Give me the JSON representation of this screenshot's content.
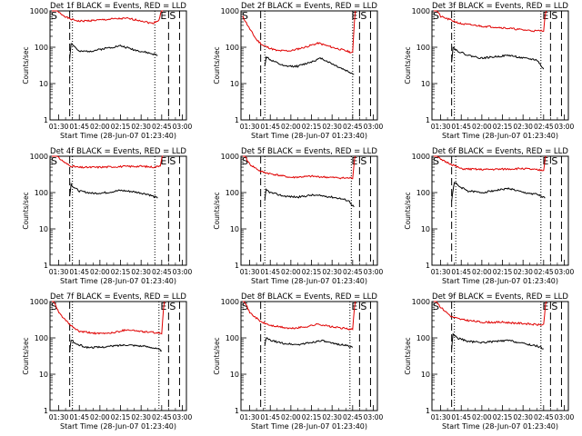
{
  "figure": {
    "series_colors": {
      "events": "#000000",
      "lld": "#e00000"
    },
    "marker_labels": {
      "end": "E",
      "start": "S"
    },
    "ylabel": "Counts/sec",
    "xlabel": "Start Time (28-Jun-07 01:23:40)",
    "x_ticks": [
      "01:30",
      "01:45",
      "02:00",
      "02:15",
      "02:30",
      "02:45",
      "03:00"
    ],
    "y_ticks": [
      "1",
      "10",
      "100",
      "1000"
    ]
  },
  "chart_data": [
    {
      "type": "line",
      "title": "Det 1f BLACK = Events, RED = LLD",
      "xlabel": "Start Time (28-Jun-07 01:23:40)",
      "ylabel": "Counts/sec",
      "x_ticks": [
        "01:30",
        "01:45",
        "02:00",
        "02:15",
        "02:30",
        "02:45",
        "03:00"
      ],
      "y_ticks": [
        "1",
        "10",
        "100",
        "1000"
      ],
      "y_scale": "log",
      "xlim": [
        "01:23:40",
        "03:03:00"
      ],
      "ylim": [
        1,
        1000
      ],
      "dashed_lines": [
        "01:38:00",
        "02:50:00",
        "02:58:00"
      ],
      "dotted_lines": [
        "01:40:00",
        "02:40:00"
      ],
      "series": [
        {
          "color": "red",
          "x": [
            "01:25",
            "01:30",
            "01:35",
            "01:38",
            "01:45",
            "02:00",
            "02:10",
            "02:20",
            "02:30",
            "02:38",
            "02:43",
            "02:46"
          ],
          "y": [
            1300,
            900,
            700,
            600,
            520,
            560,
            600,
            620,
            540,
            450,
            560,
            1500
          ]
        },
        {
          "color": "black",
          "x": [
            "01:38",
            "01:39",
            "01:41",
            "01:45",
            "01:55",
            "02:05",
            "02:15",
            "02:25",
            "02:35",
            "02:42"
          ],
          "y": [
            50,
            130,
            110,
            75,
            80,
            95,
            110,
            85,
            70,
            60
          ]
        }
      ]
    },
    {
      "type": "line",
      "title": "Det 2f BLACK = Events, RED = LLD",
      "xlabel": "Start Time (28-Jun-07 01:23:40)",
      "ylabel": "Counts/sec",
      "x_ticks": [
        "01:30",
        "01:45",
        "02:00",
        "02:15",
        "02:30",
        "02:45",
        "03:00"
      ],
      "y_ticks": [
        "1",
        "10",
        "100",
        "1000"
      ],
      "y_scale": "log",
      "xlim": [
        "01:23:40",
        "03:03:00"
      ],
      "ylim": [
        1,
        1000
      ],
      "dashed_lines": [
        "01:38:00",
        "02:50:00",
        "02:58:00"
      ],
      "dotted_lines": [
        "01:41:00",
        "02:45:00"
      ],
      "series": [
        {
          "color": "red",
          "x": [
            "01:25",
            "01:30",
            "01:35",
            "01:40",
            "01:50",
            "02:00",
            "02:10",
            "02:20",
            "02:30",
            "02:40",
            "02:45",
            "02:47"
          ],
          "y": [
            700,
            320,
            160,
            110,
            80,
            80,
            100,
            130,
            100,
            80,
            70,
            1500
          ]
        },
        {
          "color": "black",
          "x": [
            "01:41",
            "01:42",
            "01:45",
            "01:55",
            "02:05",
            "02:15",
            "02:22",
            "02:30",
            "02:38",
            "02:46"
          ],
          "y": [
            30,
            55,
            45,
            30,
            30,
            40,
            50,
            35,
            25,
            18
          ]
        }
      ]
    },
    {
      "type": "line",
      "title": "Det 3f BLACK = Events, RED = LLD",
      "xlabel": "Start Time (28-Jun-07 01:23:40)",
      "ylabel": "Counts/sec",
      "x_ticks": [
        "01:30",
        "01:45",
        "02:00",
        "02:15",
        "02:30",
        "02:45",
        "03:00"
      ],
      "y_ticks": [
        "1",
        "10",
        "100",
        "1000"
      ],
      "y_scale": "log",
      "xlim": [
        "01:23:40",
        "03:03:00"
      ],
      "ylim": [
        1,
        1000
      ],
      "dashed_lines": [
        "01:38:00",
        "02:50:00",
        "02:58:00"
      ],
      "dotted_lines": [
        "01:40:00",
        "02:43:00"
      ],
      "series": [
        {
          "color": "red",
          "x": [
            "01:25",
            "01:30",
            "01:38",
            "01:45",
            "02:00",
            "02:10",
            "02:20",
            "02:30",
            "02:40",
            "02:45",
            "02:47"
          ],
          "y": [
            1400,
            700,
            550,
            440,
            380,
            360,
            330,
            300,
            280,
            290,
            1500
          ]
        },
        {
          "color": "black",
          "x": [
            "01:38",
            "01:39",
            "01:42",
            "01:50",
            "02:00",
            "02:10",
            "02:20",
            "02:30",
            "02:40",
            "02:45"
          ],
          "y": [
            40,
            100,
            80,
            60,
            50,
            55,
            60,
            50,
            45,
            25
          ]
        }
      ]
    },
    {
      "type": "line",
      "title": "Det 4f BLACK = Events, RED = LLD",
      "xlabel": "Start Time (28-Jun-07 01:23:40)",
      "ylabel": "Counts/sec",
      "x_ticks": [
        "01:30",
        "01:45",
        "02:00",
        "02:15",
        "02:30",
        "02:45",
        "03:00"
      ],
      "y_ticks": [
        "1",
        "10",
        "100",
        "1000"
      ],
      "y_scale": "log",
      "xlim": [
        "01:23:40",
        "03:03:00"
      ],
      "ylim": [
        1,
        1000
      ],
      "dashed_lines": [
        "01:38:00",
        "02:50:00",
        "02:58:00"
      ],
      "dotted_lines": [
        "01:40:00",
        "02:40:00"
      ],
      "series": [
        {
          "color": "red",
          "x": [
            "01:25",
            "01:30",
            "01:35",
            "01:38",
            "01:45",
            "02:00",
            "02:15",
            "02:30",
            "02:40",
            "02:44",
            "02:46"
          ],
          "y": [
            1300,
            900,
            650,
            550,
            490,
            500,
            520,
            530,
            500,
            560,
            1500
          ]
        },
        {
          "color": "black",
          "x": [
            "01:38",
            "01:39",
            "01:41",
            "01:45",
            "01:55",
            "02:05",
            "02:15",
            "02:25",
            "02:35",
            "02:42"
          ],
          "y": [
            80,
            170,
            140,
            110,
            95,
            100,
            115,
            105,
            90,
            70
          ]
        }
      ]
    },
    {
      "type": "line",
      "title": "Det 5f BLACK = Events, RED = LLD",
      "xlabel": "Start Time (28-Jun-07 01:23:40)",
      "ylabel": "Counts/sec",
      "x_ticks": [
        "01:30",
        "01:45",
        "02:00",
        "02:15",
        "02:30",
        "02:45",
        "03:00"
      ],
      "y_ticks": [
        "1",
        "10",
        "100",
        "1000"
      ],
      "y_scale": "log",
      "xlim": [
        "01:23:40",
        "03:03:00"
      ],
      "ylim": [
        1,
        1000
      ],
      "dashed_lines": [
        "01:38:00",
        "02:50:00",
        "02:58:00"
      ],
      "dotted_lines": [
        "01:41:00",
        "02:44:00"
      ],
      "series": [
        {
          "color": "red",
          "x": [
            "01:25",
            "01:30",
            "01:38",
            "01:45",
            "02:00",
            "02:15",
            "02:30",
            "02:40",
            "02:45",
            "02:47"
          ],
          "y": [
            1300,
            600,
            380,
            330,
            260,
            280,
            260,
            250,
            250,
            1500
          ]
        },
        {
          "color": "black",
          "x": [
            "01:41",
            "01:42",
            "01:45",
            "01:55",
            "02:05",
            "02:15",
            "02:25",
            "02:35",
            "02:42",
            "02:46"
          ],
          "y": [
            60,
            120,
            100,
            80,
            75,
            85,
            80,
            70,
            60,
            40
          ]
        }
      ]
    },
    {
      "type": "line",
      "title": "Det 6f BLACK = Events, RED = LLD",
      "xlabel": "Start Time (28-Jun-07 01:23:40)",
      "ylabel": "Counts/sec",
      "x_ticks": [
        "01:30",
        "01:45",
        "02:00",
        "02:15",
        "02:30",
        "02:45",
        "03:00"
      ],
      "y_ticks": [
        "1",
        "10",
        "100",
        "1000"
      ],
      "y_scale": "log",
      "xlim": [
        "01:23:40",
        "03:03:00"
      ],
      "ylim": [
        1,
        1000
      ],
      "dashed_lines": [
        "01:38:00",
        "02:50:00",
        "02:58:00"
      ],
      "dotted_lines": [
        "01:41:00",
        "02:43:00"
      ],
      "series": [
        {
          "color": "red",
          "x": [
            "01:25",
            "01:30",
            "01:38",
            "01:45",
            "02:00",
            "02:15",
            "02:30",
            "02:40",
            "02:45",
            "02:47"
          ],
          "y": [
            1300,
            800,
            600,
            450,
            430,
            440,
            460,
            420,
            410,
            1500
          ]
        },
        {
          "color": "black",
          "x": [
            "01:38",
            "01:40",
            "01:43",
            "01:50",
            "02:00",
            "02:10",
            "02:20",
            "02:30",
            "02:40",
            "02:46"
          ],
          "y": [
            60,
            200,
            150,
            110,
            100,
            115,
            130,
            100,
            90,
            70
          ]
        }
      ]
    },
    {
      "type": "line",
      "title": "Det 7f BLACK = Events, RED = LLD",
      "xlabel": "Start Time (28-Jun-07 01:23:40)",
      "ylabel": "Counts/sec",
      "x_ticks": [
        "01:30",
        "01:45",
        "02:00",
        "02:15",
        "02:30",
        "02:45",
        "03:00"
      ],
      "y_ticks": [
        "1",
        "10",
        "100",
        "1000"
      ],
      "y_scale": "log",
      "xlim": [
        "01:23:40",
        "03:03:00"
      ],
      "ylim": [
        1,
        1000
      ],
      "dashed_lines": [
        "01:38:00",
        "02:50:00",
        "02:58:00"
      ],
      "dotted_lines": [
        "01:40:00",
        "02:43:00"
      ],
      "series": [
        {
          "color": "red",
          "x": [
            "01:25",
            "01:30",
            "01:38",
            "01:45",
            "02:00",
            "02:10",
            "02:20",
            "02:30",
            "02:40",
            "02:45",
            "02:47"
          ],
          "y": [
            1300,
            500,
            230,
            150,
            130,
            140,
            170,
            150,
            140,
            130,
            1500
          ]
        },
        {
          "color": "black",
          "x": [
            "01:38",
            "01:39",
            "01:42",
            "01:50",
            "02:00",
            "02:10",
            "02:20",
            "02:30",
            "02:38",
            "02:45"
          ],
          "y": [
            40,
            90,
            70,
            55,
            55,
            60,
            65,
            60,
            55,
            45
          ]
        }
      ]
    },
    {
      "type": "line",
      "title": "Det 8f BLACK = Events, RED = LLD",
      "xlabel": "Start Time (28-Jun-07 01:23:40)",
      "ylabel": "Counts/sec",
      "x_ticks": [
        "01:30",
        "01:45",
        "02:00",
        "02:15",
        "02:30",
        "02:45",
        "03:00"
      ],
      "y_ticks": [
        "1",
        "10",
        "100",
        "1000"
      ],
      "y_scale": "log",
      "xlim": [
        "01:23:40",
        "03:03:00"
      ],
      "ylim": [
        1,
        1000
      ],
      "dashed_lines": [
        "01:38:00",
        "02:50:00",
        "02:58:00"
      ],
      "dotted_lines": [
        "01:41:00",
        "02:43:00"
      ],
      "series": [
        {
          "color": "red",
          "x": [
            "01:25",
            "01:30",
            "01:38",
            "01:45",
            "02:00",
            "02:10",
            "02:20",
            "02:30",
            "02:40",
            "02:45",
            "02:47"
          ],
          "y": [
            1300,
            500,
            280,
            220,
            180,
            200,
            240,
            200,
            180,
            170,
            1500
          ]
        },
        {
          "color": "black",
          "x": [
            "01:41",
            "01:42",
            "01:45",
            "01:55",
            "02:05",
            "02:15",
            "02:22",
            "02:30",
            "02:38",
            "02:45"
          ],
          "y": [
            60,
            100,
            85,
            70,
            65,
            75,
            85,
            70,
            65,
            55
          ]
        }
      ]
    },
    {
      "type": "line",
      "title": "Det 9f BLACK = Events, RED = LLD",
      "xlabel": "Start Time (28-Jun-07 01:23:40)",
      "ylabel": "Counts/sec",
      "x_ticks": [
        "01:30",
        "01:45",
        "02:00",
        "02:15",
        "02:30",
        "02:45",
        "03:00"
      ],
      "y_ticks": [
        "1",
        "10",
        "100",
        "1000"
      ],
      "y_scale": "log",
      "xlim": [
        "01:23:40",
        "03:03:00"
      ],
      "ylim": [
        1,
        1000
      ],
      "dashed_lines": [
        "01:38:00",
        "02:50:00",
        "02:58:00"
      ],
      "dotted_lines": [
        "01:40:00",
        "02:43:00"
      ],
      "series": [
        {
          "color": "red",
          "x": [
            "01:25",
            "01:30",
            "01:38",
            "01:45",
            "02:00",
            "02:15",
            "02:30",
            "02:40",
            "02:45",
            "02:47"
          ],
          "y": [
            1300,
            700,
            380,
            320,
            270,
            270,
            250,
            230,
            230,
            1500
          ]
        },
        {
          "color": "black",
          "x": [
            "01:38",
            "01:39",
            "01:42",
            "01:50",
            "02:00",
            "02:10",
            "02:20",
            "02:30",
            "02:40",
            "02:45"
          ],
          "y": [
            50,
            130,
            100,
            80,
            75,
            80,
            85,
            70,
            60,
            50
          ]
        }
      ]
    }
  ]
}
